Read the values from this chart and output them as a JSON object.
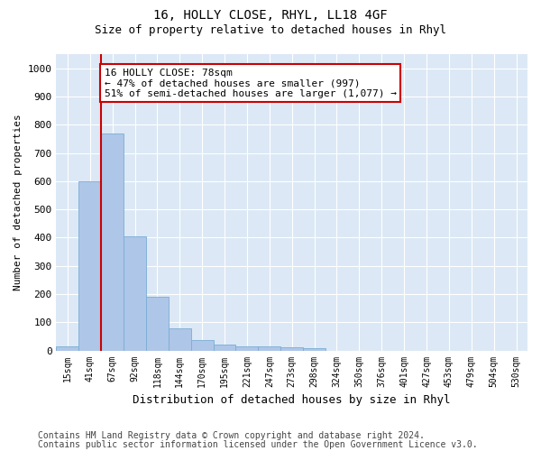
{
  "title": "16, HOLLY CLOSE, RHYL, LL18 4GF",
  "subtitle": "Size of property relative to detached houses in Rhyl",
  "xlabel": "Distribution of detached houses by size in Rhyl",
  "ylabel": "Number of detached properties",
  "bin_labels": [
    "15sqm",
    "41sqm",
    "67sqm",
    "92sqm",
    "118sqm",
    "144sqm",
    "170sqm",
    "195sqm",
    "221sqm",
    "247sqm",
    "273sqm",
    "298sqm",
    "324sqm",
    "350sqm",
    "376sqm",
    "401sqm",
    "427sqm",
    "453sqm",
    "479sqm",
    "504sqm",
    "530sqm"
  ],
  "bar_values": [
    15,
    600,
    770,
    405,
    190,
    78,
    38,
    20,
    15,
    13,
    10,
    7,
    0,
    0,
    0,
    0,
    0,
    0,
    0,
    0,
    0
  ],
  "bar_color": "#aec6e8",
  "bar_edge_color": "#7aadd4",
  "vline_x": 2,
  "vline_color": "#cc0000",
  "annotation_text": "16 HOLLY CLOSE: 78sqm\n← 47% of detached houses are smaller (997)\n51% of semi-detached houses are larger (1,077) →",
  "annotation_box_color": "#cc0000",
  "ylim": [
    0,
    1050
  ],
  "yticks": [
    0,
    100,
    200,
    300,
    400,
    500,
    600,
    700,
    800,
    900,
    1000
  ],
  "footer_line1": "Contains HM Land Registry data © Crown copyright and database right 2024.",
  "footer_line2": "Contains public sector information licensed under the Open Government Licence v3.0.",
  "bg_color": "#ffffff",
  "plot_bg_color": "#dce8f5",
  "title_fontsize": 10,
  "subtitle_fontsize": 9,
  "footer_fontsize": 7
}
